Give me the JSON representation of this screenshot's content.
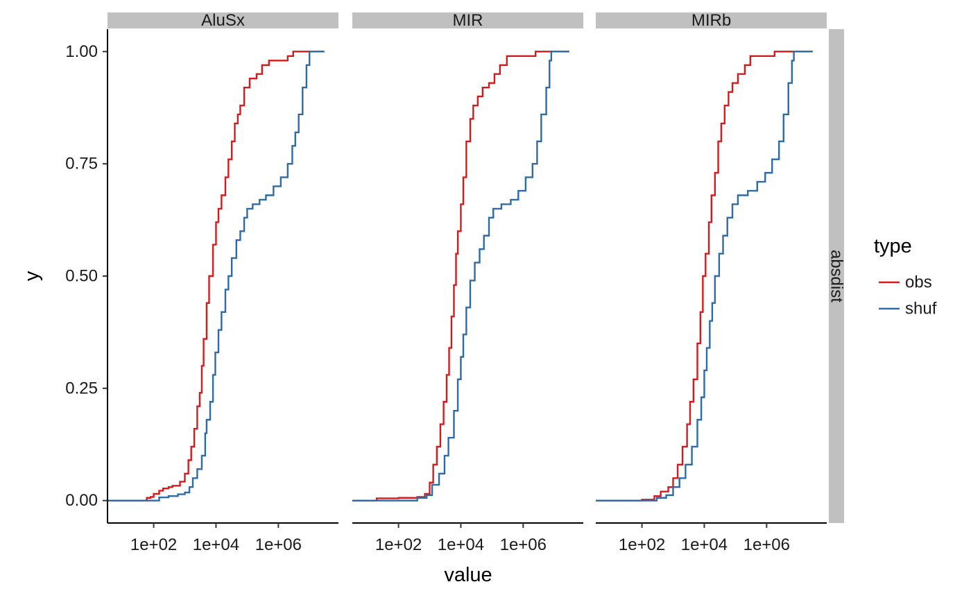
{
  "chart_data": {
    "type": "line",
    "xlabel": "value",
    "ylabel": "y",
    "x_scale": "log10",
    "x_ticks": [
      {
        "value": 100,
        "label": "1e+02"
      },
      {
        "value": 10000,
        "label": "1e+04"
      },
      {
        "value": 1000000,
        "label": "1e+06"
      }
    ],
    "y_ticks": [
      {
        "value": 0,
        "label": "0.00"
      },
      {
        "value": 0.25,
        "label": "0.25"
      },
      {
        "value": 0.5,
        "label": "0.50"
      },
      {
        "value": 0.75,
        "label": "0.75"
      },
      {
        "value": 1,
        "label": "1.00"
      }
    ],
    "xlim": [
      3.3,
      85000000
    ],
    "ylim": [
      -0.05,
      1.05
    ],
    "grid": false,
    "row_strip": "absdist",
    "legend": {
      "title": "type",
      "placement": "right",
      "entries": [
        {
          "name": "obs",
          "color": "#d7191c"
        },
        {
          "name": "shuf",
          "color": "#2c6aa8"
        }
      ]
    },
    "panels": [
      {
        "name": "AluSx",
        "series": [
          {
            "name": "obs",
            "color": "#d7191c",
            "points": [
              [
                3.3,
                0
              ],
              [
                40,
                0
              ],
              [
                60,
                0.006
              ],
              [
                80,
                0.008
              ],
              [
                100,
                0.015
              ],
              [
                150,
                0.022
              ],
              [
                200,
                0.027
              ],
              [
                300,
                0.03
              ],
              [
                400,
                0.033
              ],
              [
                700,
                0.042
              ],
              [
                1000,
                0.06
              ],
              [
                1300,
                0.09
              ],
              [
                1600,
                0.12
              ],
              [
                2000,
                0.16
              ],
              [
                2500,
                0.21
              ],
              [
                3000,
                0.24
              ],
              [
                3500,
                0.3
              ],
              [
                4000,
                0.36
              ],
              [
                5000,
                0.44
              ],
              [
                6000,
                0.5
              ],
              [
                8000,
                0.57
              ],
              [
                10000,
                0.62
              ],
              [
                12000,
                0.65
              ],
              [
                15000,
                0.68
              ],
              [
                20000,
                0.72
              ],
              [
                25000,
                0.76
              ],
              [
                32000,
                0.8
              ],
              [
                40000,
                0.84
              ],
              [
                50000,
                0.86
              ],
              [
                60000,
                0.88
              ],
              [
                80000,
                0.92
              ],
              [
                120000,
                0.94
              ],
              [
                200000,
                0.95
              ],
              [
                300000,
                0.97
              ],
              [
                500000,
                0.98
              ],
              [
                1000000,
                0.98
              ],
              [
                2000000,
                0.99
              ],
              [
                3000000,
                1
              ],
              [
                30000000,
                1
              ]
            ]
          },
          {
            "name": "shuf",
            "color": "#2c6aa8",
            "points": [
              [
                3.3,
                0
              ],
              [
                100,
                0
              ],
              [
                150,
                0.007
              ],
              [
                300,
                0.01
              ],
              [
                600,
                0.014
              ],
              [
                1000,
                0.018
              ],
              [
                1400,
                0.03
              ],
              [
                1800,
                0.05
              ],
              [
                2500,
                0.07
              ],
              [
                3500,
                0.1
              ],
              [
                4500,
                0.15
              ],
              [
                5000,
                0.18
              ],
              [
                6500,
                0.22
              ],
              [
                8000,
                0.28
              ],
              [
                9500,
                0.33
              ],
              [
                12000,
                0.38
              ],
              [
                15000,
                0.42
              ],
              [
                20000,
                0.47
              ],
              [
                25000,
                0.5
              ],
              [
                32000,
                0.54
              ],
              [
                45000,
                0.58
              ],
              [
                60000,
                0.6
              ],
              [
                80000,
                0.63
              ],
              [
                100000,
                0.65
              ],
              [
                150000,
                0.66
              ],
              [
                250000,
                0.67
              ],
              [
                400000,
                0.68
              ],
              [
                700000,
                0.7
              ],
              [
                1200000,
                0.72
              ],
              [
                2000000,
                0.75
              ],
              [
                2800000,
                0.79
              ],
              [
                3500000,
                0.82
              ],
              [
                4500000,
                0.86
              ],
              [
                6000000,
                0.92
              ],
              [
                8000000,
                0.97
              ],
              [
                10000000,
                1
              ],
              [
                30000000,
                1
              ]
            ]
          }
        ]
      },
      {
        "name": "MIR",
        "series": [
          {
            "name": "obs",
            "color": "#d7191c",
            "points": [
              [
                3.3,
                0
              ],
              [
                20,
                0.005
              ],
              [
                100,
                0.006
              ],
              [
                400,
                0.008
              ],
              [
                700,
                0.015
              ],
              [
                1000,
                0.04
              ],
              [
                1300,
                0.08
              ],
              [
                1700,
                0.12
              ],
              [
                2200,
                0.17
              ],
              [
                2800,
                0.22
              ],
              [
                3500,
                0.28
              ],
              [
                4200,
                0.34
              ],
              [
                5000,
                0.41
              ],
              [
                6000,
                0.48
              ],
              [
                7000,
                0.55
              ],
              [
                8000,
                0.6
              ],
              [
                10000,
                0.66
              ],
              [
                12000,
                0.72
              ],
              [
                15000,
                0.8
              ],
              [
                20000,
                0.85
              ],
              [
                25000,
                0.88
              ],
              [
                35000,
                0.9
              ],
              [
                50000,
                0.92
              ],
              [
                80000,
                0.93
              ],
              [
                120000,
                0.95
              ],
              [
                180000,
                0.97
              ],
              [
                300000,
                0.99
              ],
              [
                1000000,
                0.99
              ],
              [
                2500000,
                1
              ],
              [
                30000000,
                1
              ]
            ]
          },
          {
            "name": "shuf",
            "color": "#2c6aa8",
            "points": [
              [
                3.3,
                0
              ],
              [
                400,
                0.006
              ],
              [
                800,
                0.012
              ],
              [
                1200,
                0.035
              ],
              [
                2000,
                0.06
              ],
              [
                3000,
                0.1
              ],
              [
                4000,
                0.14
              ],
              [
                6000,
                0.2
              ],
              [
                8000,
                0.27
              ],
              [
                10000,
                0.32
              ],
              [
                12000,
                0.37
              ],
              [
                15000,
                0.43
              ],
              [
                20000,
                0.49
              ],
              [
                28000,
                0.53
              ],
              [
                40000,
                0.56
              ],
              [
                55000,
                0.59
              ],
              [
                80000,
                0.63
              ],
              [
                110000,
                0.65
              ],
              [
                200000,
                0.66
              ],
              [
                400000,
                0.67
              ],
              [
                700000,
                0.69
              ],
              [
                1200000,
                0.72
              ],
              [
                2000000,
                0.75
              ],
              [
                2800000,
                0.8
              ],
              [
                3800000,
                0.86
              ],
              [
                5500000,
                0.92
              ],
              [
                7000000,
                0.98
              ],
              [
                8000000,
                1
              ],
              [
                30000000,
                1
              ]
            ]
          }
        ]
      },
      {
        "name": "MIRb",
        "series": [
          {
            "name": "obs",
            "color": "#d7191c",
            "points": [
              [
                3.3,
                0
              ],
              [
                100,
                0.002
              ],
              [
                250,
                0.01
              ],
              [
                400,
                0.02
              ],
              [
                700,
                0.03
              ],
              [
                1000,
                0.05
              ],
              [
                1400,
                0.08
              ],
              [
                2000,
                0.12
              ],
              [
                2800,
                0.17
              ],
              [
                3500,
                0.22
              ],
              [
                4500,
                0.27
              ],
              [
                6000,
                0.35
              ],
              [
                7500,
                0.42
              ],
              [
                9000,
                0.5
              ],
              [
                11000,
                0.55
              ],
              [
                14000,
                0.62
              ],
              [
                17000,
                0.68
              ],
              [
                22000,
                0.73
              ],
              [
                28000,
                0.8
              ],
              [
                35000,
                0.84
              ],
              [
                45000,
                0.88
              ],
              [
                60000,
                0.91
              ],
              [
                80000,
                0.93
              ],
              [
                120000,
                0.95
              ],
              [
                200000,
                0.97
              ],
              [
                300000,
                0.99
              ],
              [
                1000000,
                0.99
              ],
              [
                1800000,
                1
              ],
              [
                30000000,
                1
              ]
            ]
          },
          {
            "name": "shuf",
            "color": "#2c6aa8",
            "points": [
              [
                3.3,
                0
              ],
              [
                300,
                0.006
              ],
              [
                600,
                0.012
              ],
              [
                1000,
                0.03
              ],
              [
                1600,
                0.05
              ],
              [
                2500,
                0.08
              ],
              [
                4000,
                0.12
              ],
              [
                6000,
                0.18
              ],
              [
                8000,
                0.23
              ],
              [
                10000,
                0.29
              ],
              [
                12000,
                0.34
              ],
              [
                15000,
                0.4
              ],
              [
                18000,
                0.44
              ],
              [
                22000,
                0.5
              ],
              [
                30000,
                0.55
              ],
              [
                40000,
                0.59
              ],
              [
                55000,
                0.63
              ],
              [
                80000,
                0.66
              ],
              [
                120000,
                0.68
              ],
              [
                250000,
                0.69
              ],
              [
                500000,
                0.71
              ],
              [
                900000,
                0.73
              ],
              [
                1500000,
                0.76
              ],
              [
                2500000,
                0.8
              ],
              [
                3500000,
                0.86
              ],
              [
                5000000,
                0.93
              ],
              [
                6500000,
                0.98
              ],
              [
                7500000,
                1
              ],
              [
                30000000,
                1
              ]
            ]
          }
        ]
      }
    ]
  }
}
